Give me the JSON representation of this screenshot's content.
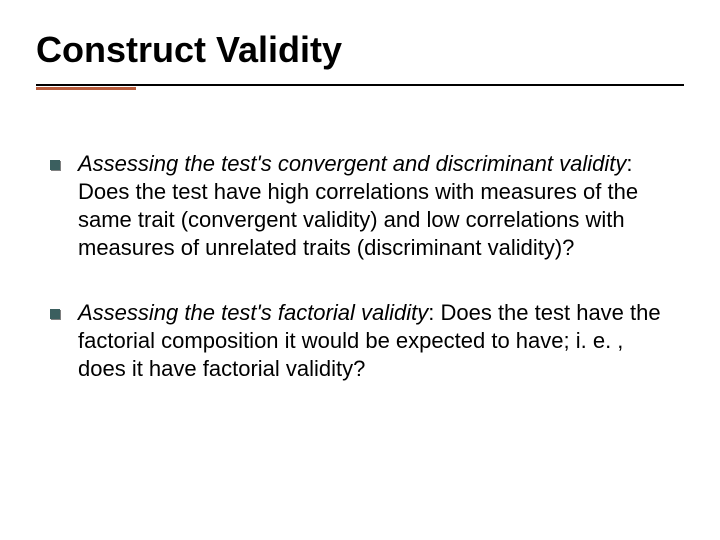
{
  "slide": {
    "title": "Construct Validity",
    "title_color": "#000000",
    "title_fontsize": 36,
    "title_rule_color": "#000000",
    "accent_rule_color": "#b85c3c",
    "background_color": "#ffffff",
    "bullet_color": "#3b5f5f",
    "bullet_shadow_color": "#808080",
    "body_fontsize": 22,
    "body_color": "#000000",
    "bullets": [
      {
        "lead": "Assessing the test's convergent and discriminant validity",
        "rest": ": Does the test have high correlations with measures of the same trait (convergent validity) and low correlations with measures of unrelated traits (discriminant validity)?"
      },
      {
        "lead": "Assessing the test's factorial validity",
        "rest": ": Does the test have the factorial composition it would be expected to have; i. e. , does it have factorial validity?"
      }
    ]
  }
}
